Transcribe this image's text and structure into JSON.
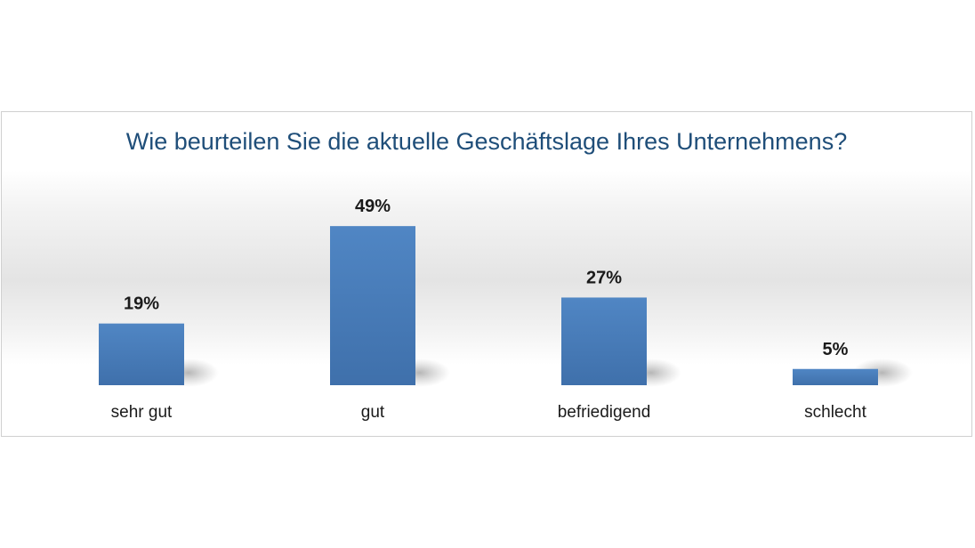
{
  "chart_data": {
    "type": "bar",
    "title": "Wie beurteilen Sie die aktuelle Geschäftslage Ihres Unternehmens?",
    "categories": [
      "sehr gut",
      "gut",
      "befriedigend",
      "schlecht"
    ],
    "values": [
      19,
      49,
      27,
      5
    ],
    "value_labels": [
      "19%",
      "49%",
      "27%",
      "5%"
    ],
    "unit": "%",
    "ylim": [
      0,
      60
    ],
    "grid": false,
    "legend": "none",
    "bar_color": "#4a7ebb",
    "title_color": "#1f4e79"
  }
}
